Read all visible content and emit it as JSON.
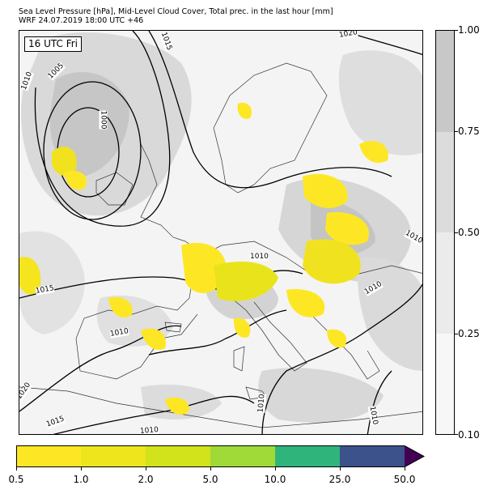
{
  "header": {
    "line1": "Sea Level Pressure [hPa], Mid-Level Cloud Cover, Total prec. in the last hour [mm]",
    "line2": "WRF 24.07.2019 18:00 UTC +46"
  },
  "map": {
    "valid_time_label": "16 UTC Fri",
    "isobar_labels": [
      "1020",
      "1015",
      "1010",
      "1005",
      "1000",
      "1010",
      "1010",
      "1015",
      "1010",
      "1010",
      "1020",
      "1015",
      "1010",
      "1010",
      "1010"
    ]
  },
  "cloud_colorbar": {
    "ticks": [
      "1.00",
      "0.75",
      "0.50",
      "0.25",
      "0.10"
    ],
    "colors": [
      "#c8c8c8",
      "#dcdcdc",
      "#ebebeb",
      "#f7f7f7"
    ]
  },
  "precip_colorbar": {
    "ticks": [
      "0.5",
      "1.0",
      "2.0",
      "5.0",
      "10.0",
      "25.0",
      "50.0"
    ],
    "colors": [
      "#fde725",
      "#efe51c",
      "#d2e21b",
      "#a0da39",
      "#2fb47c",
      "#3b528b",
      "#440154"
    ]
  }
}
